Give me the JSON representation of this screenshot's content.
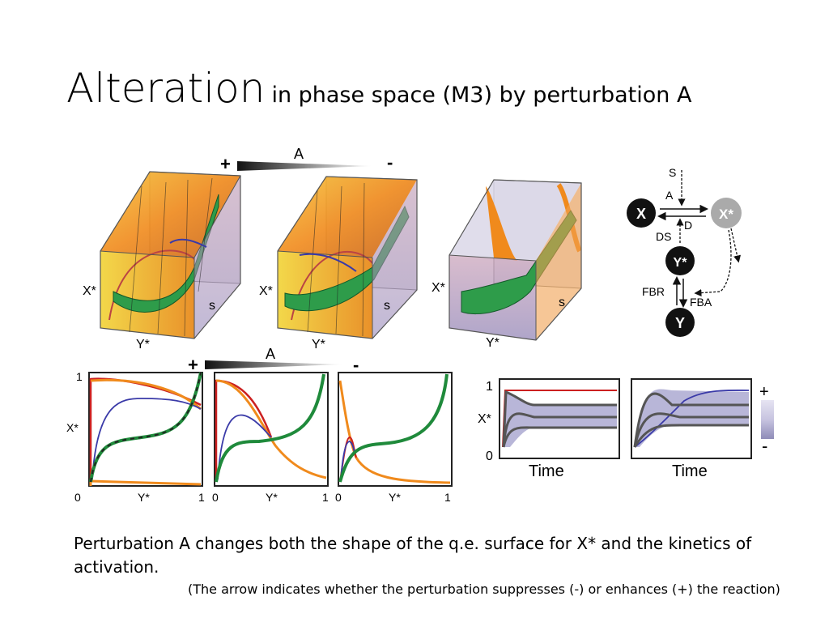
{
  "slide": {
    "title_main": "Alteration",
    "title_rest": "in phase space (M3) by perturbation A",
    "caption": "Perturbation A changes both the shape of the q.e. surface for X* and the kinetics of activation.",
    "note": "(The arrow indicates whether the perturbation suppresses (-) or enhances (+) the reaction)"
  },
  "figure": {
    "gradient_top": {
      "plus": "+",
      "label": "A",
      "minus": "-"
    },
    "gradient_bottom": {
      "plus": "+",
      "label": "A",
      "minus": "-"
    },
    "surface_labels": {
      "x": "X*",
      "y": "Y*",
      "s": "s"
    },
    "plot_labels": {
      "y_axis": "X*",
      "x_axis": "Y*",
      "tick_0": "0",
      "tick_1": "1"
    },
    "time_plots": {
      "y_axis": "X*",
      "x_axis": "Time",
      "tick_0": "0",
      "tick_1": "1",
      "legend_plus": "+",
      "legend_minus": "-"
    },
    "network": {
      "node_x": "X",
      "node_xstar": "X*",
      "node_ystar": "Y*",
      "node_y": "Y",
      "edge_s": "S",
      "edge_a": "A",
      "edge_d": "D",
      "edge_ds": "DS",
      "edge_fbr": "FBR",
      "edge_fba": "FBA"
    },
    "colors": {
      "orange": "#f08a1c",
      "green": "#1f8a3b",
      "red": "#cc2020",
      "blue": "#3a3aa8",
      "band": "#b8b6d8"
    }
  }
}
